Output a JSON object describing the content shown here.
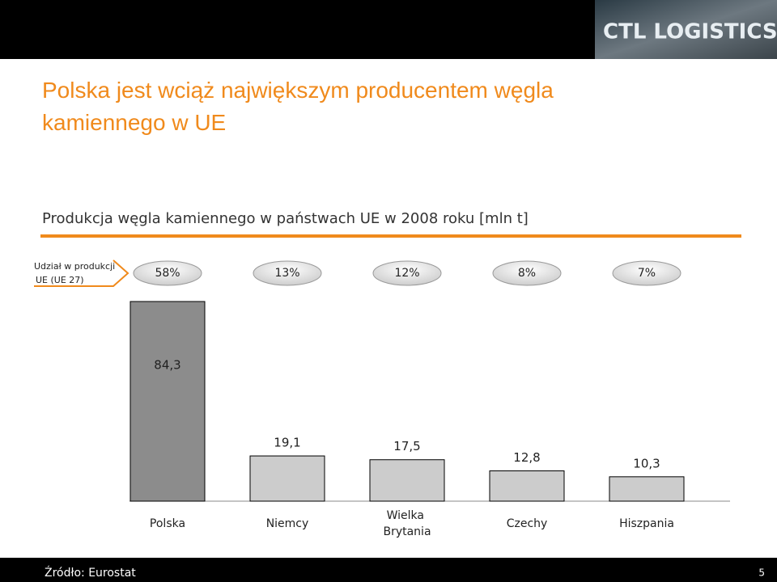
{
  "header": {
    "logo": "CTL LOGISTICS"
  },
  "chart_data": {
    "type": "bar",
    "title": "Polska jest wciąż największym producentem węgla kamiennego w UE",
    "subtitle": "Produkcja węgla kamiennego w państwach UE w 2008 roku [mln t]",
    "categories": [
      "Polska",
      "Niemcy",
      "Wielka Brytania",
      "Czechy",
      "Hiszpania"
    ],
    "values": [
      84.3,
      19.1,
      17.5,
      12.8,
      10.3
    ],
    "value_labels": [
      "84,3",
      "19,1",
      "17,5",
      "12,8",
      "10,3"
    ],
    "colors": [
      "#8c8c8c",
      "#cccccc",
      "#cccccc",
      "#cccccc",
      "#cccccc"
    ],
    "shares": {
      "label": "Udział w produkcji UE (UE 27)",
      "values": [
        58,
        13,
        12,
        8,
        7
      ],
      "value_labels": [
        "58%",
        "13%",
        "12%",
        "8%",
        "7%"
      ]
    }
  },
  "footer": {
    "source": "Źródło: Eurostat",
    "page": "5"
  }
}
